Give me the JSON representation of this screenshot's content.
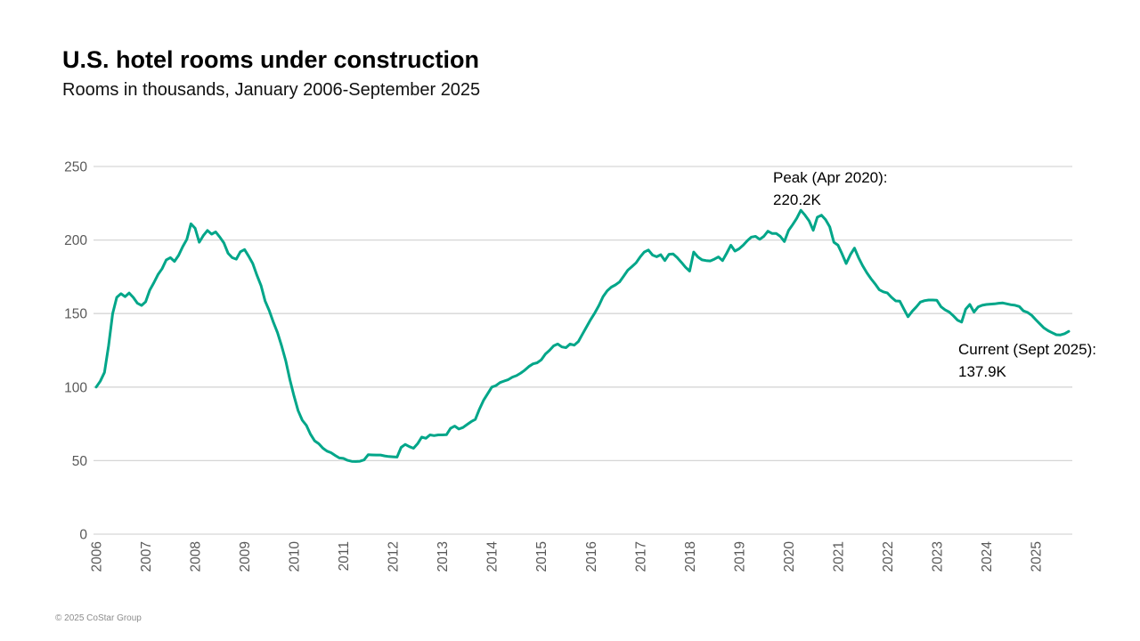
{
  "header": {
    "title": "U.S. hotel rooms under construction",
    "subtitle": "Rooms in thousands, January 2006-September 2025"
  },
  "footer": {
    "copyright": "© 2025 CoStar Group"
  },
  "chart_data": {
    "type": "line",
    "title": "U.S. hotel rooms under construction",
    "subtitle": "Rooms in thousands, January 2006-September 2025",
    "x_start": "2006-01",
    "x_end": "2025-09",
    "x_tick_years": [
      2006,
      2007,
      2008,
      2009,
      2010,
      2011,
      2012,
      2013,
      2014,
      2015,
      2016,
      2017,
      2018,
      2019,
      2020,
      2021,
      2022,
      2023,
      2024,
      2025
    ],
    "ylim": [
      0,
      250
    ],
    "yticks": [
      0,
      50,
      100,
      150,
      200,
      250
    ],
    "grid": "horizontal",
    "legend": "none",
    "line_color": "#00A689",
    "grid_color": "#D6D6D6",
    "axis_text_color": "#595959",
    "series": [
      {
        "name": "Hotel rooms under construction (thousands)",
        "monthly_values": [
          100,
          104,
          110,
          128,
          150,
          161,
          163.5,
          161.5,
          164,
          161,
          157,
          155.5,
          158,
          166,
          171,
          176.5,
          180.5,
          186.5,
          188,
          185.5,
          189.5,
          195.5,
          200.5,
          211,
          208,
          198.5,
          203,
          206.5,
          204,
          205.5,
          202,
          198,
          191,
          188,
          187,
          192,
          193.5,
          189,
          184,
          176,
          169,
          158.5,
          152,
          144,
          137,
          128,
          118,
          105,
          94,
          84,
          77.5,
          74,
          68,
          63.5,
          61.5,
          58.5,
          56.5,
          55.4,
          53.5,
          51.8,
          51.5,
          50.2,
          49.5,
          49.4,
          49.6,
          50.5,
          54,
          53.9,
          53.8,
          53.8,
          53.2,
          52.8,
          52.6,
          52.4,
          59,
          61,
          59.5,
          58.4,
          61.5,
          66,
          65.2,
          67.5,
          67,
          67.5,
          67.5,
          67.6,
          72,
          73.5,
          71.5,
          72.5,
          74.5,
          76.5,
          78,
          85,
          91,
          95.5,
          100,
          101,
          103.1,
          104.1,
          105.1,
          106.8,
          107.8,
          109.5,
          111.5,
          114,
          115.8,
          116.5,
          118.5,
          122.5,
          125,
          128,
          129.3,
          127.3,
          126.8,
          129.3,
          128.5,
          131,
          136,
          141,
          146,
          150.5,
          155.5,
          161.5,
          165.5,
          168,
          169.5,
          171.5,
          175.5,
          179.5,
          181.9,
          184.5,
          188.5,
          191.8,
          193.2,
          189.8,
          188.6,
          190,
          186,
          190.3,
          190.5,
          188,
          184.8,
          181.5,
          178.9,
          191.8,
          188.5,
          186.5,
          186,
          185.8,
          187,
          188.5,
          186,
          191,
          196.5,
          192.5,
          194,
          196.5,
          199.5,
          202,
          202.5,
          200.5,
          202.5,
          206,
          204.5,
          204.5,
          202.5,
          199,
          206.5,
          210.5,
          214.8,
          220.2,
          216.9,
          213,
          206.6,
          215.5,
          216.9,
          213.8,
          209,
          198.5,
          196.5,
          190.5,
          184,
          190,
          194.5,
          188,
          182.5,
          177.7,
          173.7,
          170.2,
          166.2,
          164.8,
          164,
          161,
          158.6,
          158.4,
          153,
          147.8,
          151.5,
          154.5,
          157.8,
          158.8,
          159.2,
          159.2,
          159,
          154.6,
          152.5,
          151,
          148.5,
          145.5,
          144.2,
          153,
          156.2,
          151,
          154.5,
          155.6,
          156.2,
          156.4,
          156.6,
          157,
          157.2,
          156.6,
          156,
          155.6,
          154.8,
          151.8,
          150.8,
          148.8,
          145.8,
          143,
          140.2,
          138.3,
          136.9,
          135.6,
          135.5,
          136.3,
          137.9
        ]
      }
    ],
    "annotations": [
      {
        "label_line1": "Peak (Apr 2020):",
        "label_line2": "220.2K",
        "month": "2020-04",
        "value": 220.2
      },
      {
        "label_line1": "Current (Sept 2025):",
        "label_line2": "137.9K",
        "month": "2025-09",
        "value": 137.9
      }
    ]
  }
}
